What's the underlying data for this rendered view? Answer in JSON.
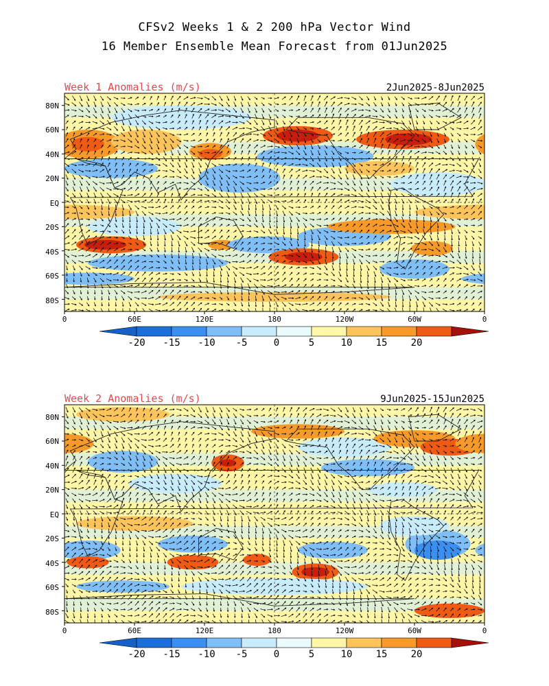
{
  "title_line1": "CFSv2 Weeks 1 & 2 200 hPa Vector Wind",
  "title_line2": "16 Member Ensemble Mean Forecast from 01Jun2025",
  "colors": {
    "c_neg20": "#1c6fd8",
    "c_neg15": "#3b8ff0",
    "c_neg10": "#7fbef7",
    "c_neg5": "#c8ecfb",
    "c_0": "#e9fbfd",
    "c_pos0": "#fff6a8",
    "c_pos5": "#fdc45c",
    "c_pos10": "#f79a2a",
    "c_pos15": "#ef5a14",
    "c_pos20": "#c81e0e",
    "c_max": "#a5100a",
    "title_red": "#e5484d"
  },
  "panels": [
    {
      "label": "Week 1 Anomalies (m/s)",
      "date_range": "2Jun2025-8Jun2025",
      "lat_labels": [
        "80N",
        "60N",
        "40N",
        "20N",
        "EQ",
        "20S",
        "40S",
        "60S",
        "80S"
      ],
      "lon_labels": [
        "0",
        "60E",
        "120E",
        "180",
        "120W",
        "60W",
        "0"
      ],
      "colorbar_labels": [
        "-20",
        "-15",
        "-10",
        "-5",
        "0",
        "5",
        "10",
        "15",
        "20"
      ]
    },
    {
      "label": "Week 2 Anomalies (m/s)",
      "date_range": "9Jun2025-15Jun2025",
      "lat_labels": [
        "80N",
        "60N",
        "40N",
        "20N",
        "EQ",
        "20S",
        "40S",
        "60S",
        "80S"
      ],
      "lon_labels": [
        "0",
        "60E",
        "120E",
        "180",
        "120W",
        "60W",
        "0"
      ],
      "colorbar_labels": [
        "-20",
        "-15",
        "-10",
        "-5",
        "0",
        "5",
        "10",
        "15",
        "20"
      ]
    }
  ]
}
